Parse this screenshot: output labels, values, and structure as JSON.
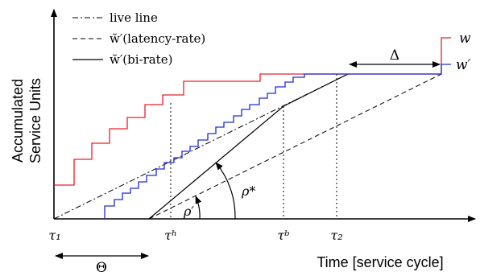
{
  "axes": {
    "xlabel": "Time [service cycle]",
    "ylabel_line1": "Accumulated",
    "ylabel_line2": "Service Units"
  },
  "legend": [
    {
      "style": "dash-dot",
      "label": "live line"
    },
    {
      "style": "dashed",
      "label": "w̆′(latency-rate)"
    },
    {
      "style": "solid",
      "label": "w̆′(bi-rate)"
    }
  ],
  "curve_labels": {
    "w": "w",
    "w_prime": "w′"
  },
  "ticks": {
    "tau1": "τ₁",
    "tau_h": "τʰ",
    "tau_b": "τᵇ",
    "tau2": "τ₂"
  },
  "annotations": {
    "delta": "Δ",
    "theta": "Θ",
    "rho_prime": "ρ′",
    "rho_star": "ρ*"
  },
  "colors": {
    "w": "#e8202a",
    "w_prime": "#1d2bd6",
    "ink": "#000000"
  }
}
